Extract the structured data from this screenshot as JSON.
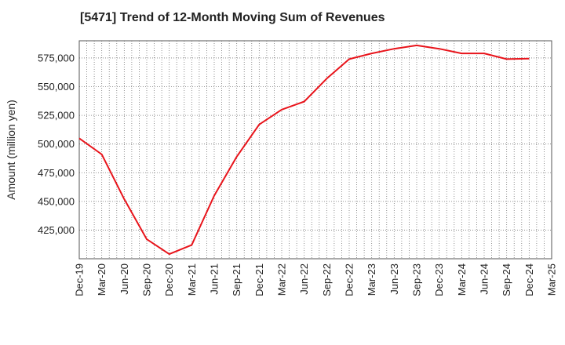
{
  "chart_data": {
    "type": "line",
    "title": "[5471]  Trend of 12-Month Moving Sum of Revenues",
    "xlabel": "",
    "ylabel": "Amount (million yen)",
    "x_ticks": [
      "Dec-19",
      "Mar-20",
      "Jun-20",
      "Sep-20",
      "Dec-20",
      "Mar-21",
      "Jun-21",
      "Sep-21",
      "Dec-21",
      "Mar-22",
      "Jun-22",
      "Sep-22",
      "Dec-22",
      "Mar-23",
      "Jun-23",
      "Sep-23",
      "Dec-23",
      "Mar-24",
      "Jun-24",
      "Sep-24",
      "Dec-24",
      "Mar-25"
    ],
    "y_ticks": [
      "425,000",
      "450,000",
      "475,000",
      "500,000",
      "525,000",
      "550,000",
      "575,000"
    ],
    "y_tick_values": [
      425000,
      450000,
      475000,
      500000,
      525000,
      550000,
      575000
    ],
    "ylim": [
      400000,
      590000
    ],
    "grid": true,
    "series": [
      {
        "color": "#e8141b",
        "x": [
          "Dec-19",
          "Mar-20",
          "Jun-20",
          "Sep-20",
          "Dec-20",
          "Mar-21",
          "Jun-21",
          "Sep-21",
          "Dec-21",
          "Mar-22",
          "Jun-22",
          "Sep-22",
          "Dec-22",
          "Mar-23",
          "Jun-23",
          "Sep-23",
          "Dec-23",
          "Mar-24",
          "Jun-24",
          "Sep-24",
          "Dec-24"
        ],
        "values": [
          505000,
          491000,
          452000,
          417000,
          404000,
          412000,
          455000,
          489000,
          517000,
          530000,
          537000,
          557000,
          574000,
          579000,
          583000,
          586000,
          583000,
          579000,
          579000,
          574000,
          574500
        ]
      }
    ]
  }
}
